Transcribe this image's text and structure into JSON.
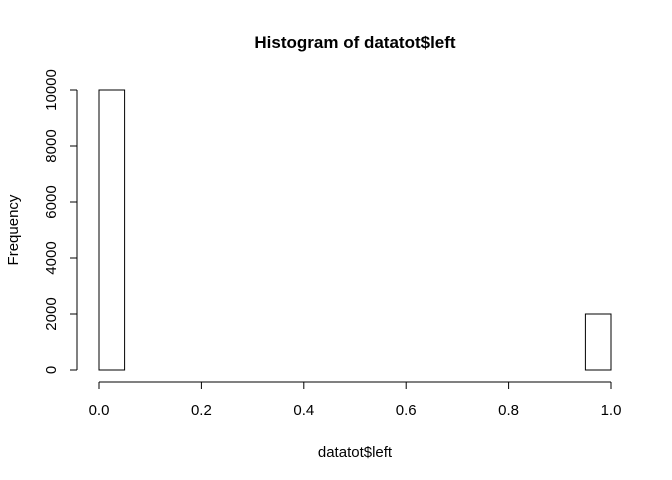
{
  "chart_data": {
    "type": "bar",
    "title": "Histogram of datatot$left",
    "xlabel": "datatot$left",
    "ylabel": "Frequency",
    "bins": [
      {
        "x0": 0.0,
        "x1": 0.05,
        "count": 10000
      },
      {
        "x0": 0.05,
        "x1": 0.1,
        "count": 0
      },
      {
        "x0": 0.1,
        "x1": 0.15,
        "count": 0
      },
      {
        "x0": 0.15,
        "x1": 0.2,
        "count": 0
      },
      {
        "x0": 0.2,
        "x1": 0.25,
        "count": 0
      },
      {
        "x0": 0.25,
        "x1": 0.3,
        "count": 0
      },
      {
        "x0": 0.3,
        "x1": 0.35,
        "count": 0
      },
      {
        "x0": 0.35,
        "x1": 0.4,
        "count": 0
      },
      {
        "x0": 0.4,
        "x1": 0.45,
        "count": 0
      },
      {
        "x0": 0.45,
        "x1": 0.5,
        "count": 0
      },
      {
        "x0": 0.5,
        "x1": 0.55,
        "count": 0
      },
      {
        "x0": 0.55,
        "x1": 0.6,
        "count": 0
      },
      {
        "x0": 0.6,
        "x1": 0.65,
        "count": 0
      },
      {
        "x0": 0.65,
        "x1": 0.7,
        "count": 0
      },
      {
        "x0": 0.7,
        "x1": 0.75,
        "count": 0
      },
      {
        "x0": 0.75,
        "x1": 0.8,
        "count": 0
      },
      {
        "x0": 0.8,
        "x1": 0.85,
        "count": 0
      },
      {
        "x0": 0.85,
        "x1": 0.9,
        "count": 0
      },
      {
        "x0": 0.9,
        "x1": 0.95,
        "count": 0
      },
      {
        "x0": 0.95,
        "x1": 1.0,
        "count": 2000
      }
    ],
    "xlim": [
      0,
      1
    ],
    "ylim": [
      0,
      10000
    ],
    "xticks": [
      "0.0",
      "0.2",
      "0.4",
      "0.6",
      "0.8",
      "1.0"
    ],
    "yticks": [
      "0",
      "2000",
      "4000",
      "6000",
      "8000",
      "10000"
    ],
    "grid": false,
    "bar_fill": "#ffffff",
    "bar_stroke": "#000000"
  }
}
